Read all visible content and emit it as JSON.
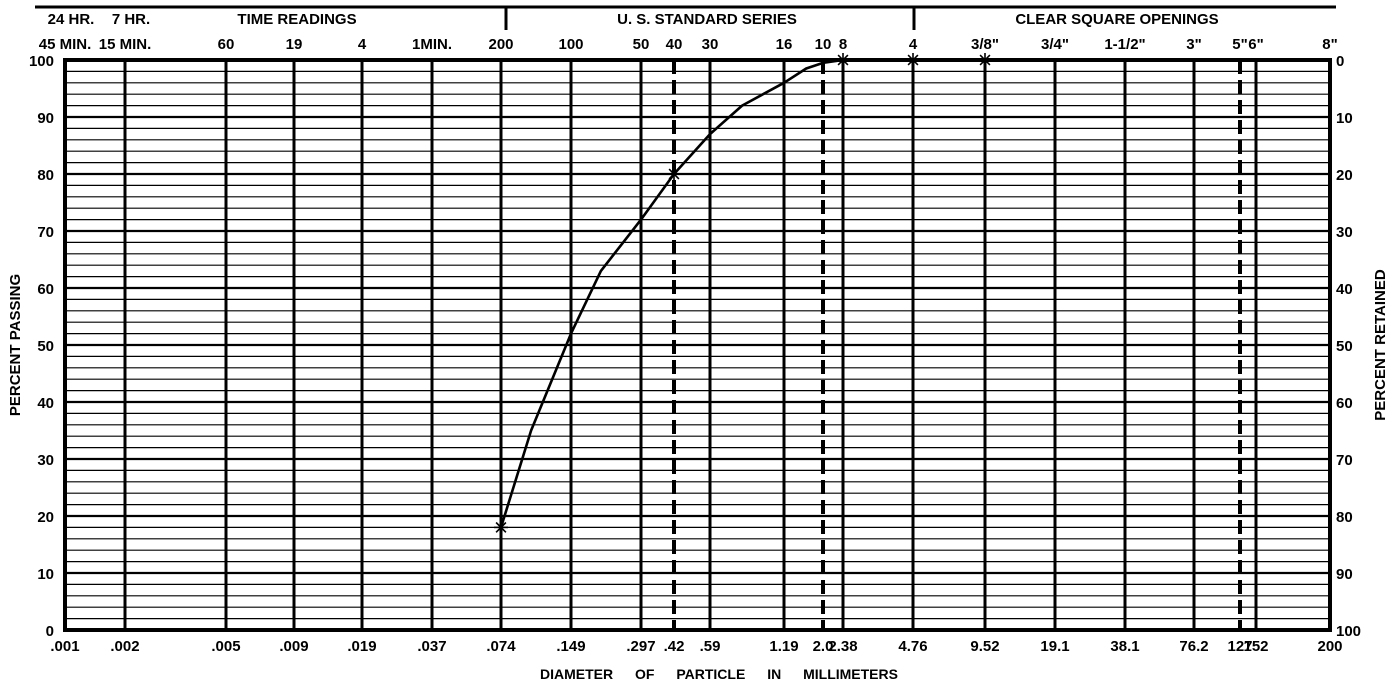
{
  "chart_data": {
    "type": "line",
    "title": "",
    "xlabel": "DIAMETER OF PARTICLE IN MILLIMETERS",
    "ylabel": "PERCENT PASSING",
    "ylabel_right": "PERCENT RETAINED",
    "x_scale": "log",
    "ylim": [
      0,
      100
    ],
    "grid": true,
    "header_groups": [
      {
        "key": "time",
        "label": "TIME READINGS"
      },
      {
        "key": "sieve",
        "label": "U. S. STANDARD SERIES"
      },
      {
        "key": "square",
        "label": "CLEAR SQUARE OPENINGS"
      }
    ],
    "header_row1": [
      {
        "x": 0.001,
        "label": "24 HR."
      },
      {
        "x": 0.002,
        "label": "7 HR."
      }
    ],
    "header_row2": [
      {
        "x": 0.001,
        "label": "45 MIN."
      },
      {
        "x": 0.002,
        "label": "15 MIN."
      },
      {
        "x": 0.005,
        "label": "60"
      },
      {
        "x": 0.009,
        "label": "19"
      },
      {
        "x": 0.019,
        "label": "4"
      },
      {
        "x": 0.037,
        "label": "1MIN."
      },
      {
        "x": 0.074,
        "label": "200"
      },
      {
        "x": 0.149,
        "label": "100"
      },
      {
        "x": 0.297,
        "label": "50"
      },
      {
        "x": 0.42,
        "label": "40"
      },
      {
        "x": 0.59,
        "label": "30"
      },
      {
        "x": 1.19,
        "label": "16"
      },
      {
        "x": 2.0,
        "label": "10"
      },
      {
        "x": 2.38,
        "label": "8"
      },
      {
        "x": 4.76,
        "label": "4"
      },
      {
        "x": 9.52,
        "label": "3/8\""
      },
      {
        "x": 19.1,
        "label": "3/4\""
      },
      {
        "x": 38.1,
        "label": "1-1/2\""
      },
      {
        "x": 76.2,
        "label": "3\""
      },
      {
        "x": 127,
        "label": "5\""
      },
      {
        "x": 152,
        "label": "6\""
      },
      {
        "x": 200,
        "label": "8\""
      }
    ],
    "x_ticks": [
      {
        "x": 0.001,
        "label": ".001"
      },
      {
        "x": 0.002,
        "label": ".002"
      },
      {
        "x": 0.005,
        "label": ".005"
      },
      {
        "x": 0.009,
        "label": ".009"
      },
      {
        "x": 0.019,
        "label": ".019"
      },
      {
        "x": 0.037,
        "label": ".037"
      },
      {
        "x": 0.074,
        "label": ".074"
      },
      {
        "x": 0.149,
        "label": ".149"
      },
      {
        "x": 0.297,
        "label": ".297"
      },
      {
        "x": 0.42,
        "label": ".42"
      },
      {
        "x": 0.59,
        "label": ".59"
      },
      {
        "x": 1.19,
        "label": "1.19"
      },
      {
        "x": 2.0,
        "label": "2.0"
      },
      {
        "x": 2.38,
        "label": "2.38"
      },
      {
        "x": 4.76,
        "label": "4.76"
      },
      {
        "x": 9.52,
        "label": "9.52"
      },
      {
        "x": 19.1,
        "label": "19.1"
      },
      {
        "x": 38.1,
        "label": "38.1"
      },
      {
        "x": 76.2,
        "label": "76.2"
      },
      {
        "x": 127,
        "label": "127"
      },
      {
        "x": 152,
        "label": "152"
      },
      {
        "x": 200,
        "label": "200"
      }
    ],
    "dashed_lines_x": [
      0.42,
      2.0,
      127
    ],
    "y_ticks_left": [
      "0",
      "10",
      "20",
      "30",
      "40",
      "50",
      "60",
      "70",
      "80",
      "90",
      "100"
    ],
    "y_ticks_right": [
      "100",
      "90",
      "80",
      "70",
      "60",
      "50",
      "40",
      "30",
      "20",
      "10",
      "0"
    ],
    "series": [
      {
        "x": [
          0.074,
          0.1,
          0.149,
          0.2,
          0.297,
          0.42,
          0.59,
          0.8,
          1.19,
          1.6,
          2.0,
          2.38,
          4.76,
          9.52
        ],
        "y": [
          18,
          35,
          52,
          63,
          72,
          80,
          87,
          92,
          96,
          98.5,
          99.5,
          100,
          100,
          100
        ]
      }
    ],
    "markers": [
      {
        "x": 0.074,
        "y": 18
      },
      {
        "x": 0.42,
        "y": 80
      },
      {
        "x": 2.38,
        "y": 100
      },
      {
        "x": 4.76,
        "y": 100
      },
      {
        "x": 9.52,
        "y": 100
      }
    ]
  }
}
